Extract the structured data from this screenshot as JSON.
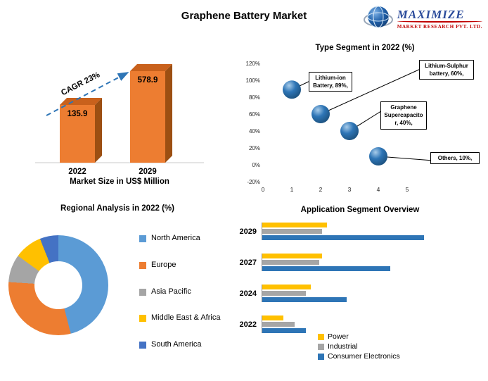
{
  "page_title": "Graphene Battery Market",
  "logo": {
    "name": "MAXIMIZE",
    "subtitle": "MARKET RESEARCH PVT. LTD.",
    "name_color": "#2B4B9B",
    "subtitle_color": "#C00000"
  },
  "chart_data": [
    {
      "id": "market_size",
      "type": "bar",
      "title": "Market Size in US$ Million",
      "categories": [
        "2022",
        "2029"
      ],
      "values": [
        135.9,
        578.9
      ],
      "annotation": "CAGR 23%",
      "bar_color": "#ED7D31",
      "bar_top_color": "#C9611C",
      "bar_side_color": "#9C4F12",
      "arrow_color": "#2E75B6"
    },
    {
      "id": "type_segment",
      "type": "scatter",
      "title": "Type Segment in 2022 (%)",
      "x": [
        1,
        2,
        3,
        4
      ],
      "y": [
        89,
        60,
        40,
        10
      ],
      "labels": [
        "Lithium-ion Battery, 89%,",
        "Lithium-Sulphur battery, 60%,",
        "Graphene Supercapacitor, 40%,",
        "Others, 10%,"
      ],
      "ylim": [
        -20,
        120
      ],
      "y_ticks": [
        "120%",
        "100%",
        "80%",
        "60%",
        "40%",
        "20%",
        "0%",
        "-20%"
      ],
      "x_ticks": [
        "0",
        "1",
        "2",
        "3",
        "4",
        "5"
      ],
      "bubble_color": "#2E75B6",
      "grid": false
    },
    {
      "id": "regional",
      "type": "pie",
      "title": "Regional Analysis in 2022 (%)",
      "labels": [
        "North America",
        "Europe",
        "Asia Pacific",
        "Middle East & Africa",
        "South America"
      ],
      "values": [
        46,
        30,
        9,
        9,
        6
      ],
      "colors": [
        "#5B9BD5",
        "#ED7D31",
        "#A5A5A5",
        "#FFC000",
        "#4472C4"
      ],
      "donut": true,
      "legend_position": "right"
    },
    {
      "id": "application",
      "type": "bar",
      "orientation": "horizontal",
      "title": "Application Segment Overview",
      "categories": [
        "2029",
        "2027",
        "2024",
        "2022"
      ],
      "series": [
        {
          "name": "Power",
          "color": "#FFC000",
          "values": [
            40,
            37,
            30,
            13
          ]
        },
        {
          "name": "Industrial",
          "color": "#A6A6A6",
          "values": [
            37,
            35,
            27,
            20
          ]
        },
        {
          "name": "Consumer Electronics",
          "color": "#2E75B6",
          "values": [
            100,
            79,
            52,
            27
          ]
        }
      ],
      "legend_position": "bottom-right"
    }
  ]
}
